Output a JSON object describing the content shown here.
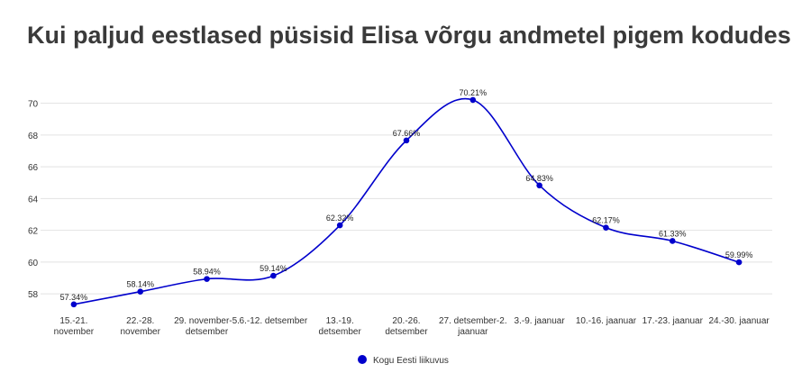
{
  "chart_data": {
    "type": "line",
    "title": "Kui paljud eestlased püsisid Elisa võrgu andmetel pigem kodudes",
    "categories": [
      [
        "15.-21.",
        "november"
      ],
      [
        "22.-28.",
        "november"
      ],
      [
        "29. november-5.",
        "detsember"
      ],
      [
        "6.-12. detsember"
      ],
      [
        "13.-19.",
        "detsember"
      ],
      [
        "20.-26.",
        "detsember"
      ],
      [
        "27. detsember-2.",
        "jaanuar"
      ],
      [
        "3.-9. jaanuar"
      ],
      [
        "10.-16. jaanuar"
      ],
      [
        "17.-23. jaanuar"
      ],
      [
        "24.-30. jaanuar"
      ]
    ],
    "series": [
      {
        "name": "Kogu Eesti liikuvus",
        "color": "#0000cc",
        "values": [
          57.34,
          58.14,
          58.94,
          59.14,
          62.32,
          67.66,
          70.21,
          64.83,
          62.17,
          61.33,
          59.99
        ],
        "value_labels": [
          "57.34%",
          "58.14%",
          "58.94%",
          "59.14%",
          "62.32%",
          "67.66%",
          "70.21%",
          "64.83%",
          "62.17%",
          "61.33%",
          "59.99%"
        ]
      }
    ],
    "ylim": [
      57.5,
      71
    ],
    "yticks": [
      58,
      60,
      62,
      64,
      66,
      68,
      70
    ],
    "grid": true,
    "legend": "bottom"
  }
}
